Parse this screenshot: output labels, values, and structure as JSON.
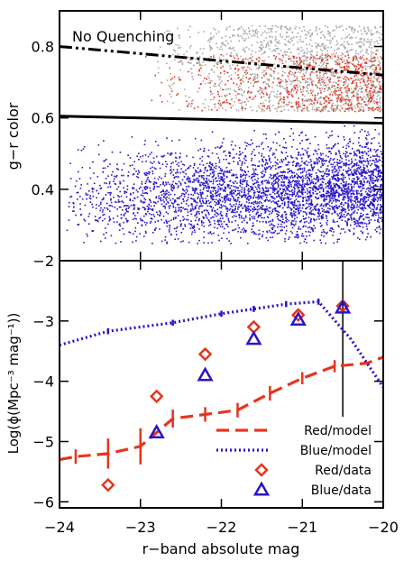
{
  "chart_data": [
    {
      "type": "scatter",
      "annotation": "No Quenching",
      "ylabel": "g−r color",
      "xlim": [
        -24,
        -20
      ],
      "ylim": [
        0.2,
        0.9
      ],
      "yticks": [
        {
          "value": 0.4,
          "label": "0.4"
        },
        {
          "value": 0.6,
          "label": "0.6"
        },
        {
          "value": 0.8,
          "label": "0.8"
        }
      ],
      "lines": [
        {
          "style": "dash-dot-dot",
          "x": [
            -24,
            -20
          ],
          "y": [
            0.8,
            0.72
          ]
        },
        {
          "style": "solid",
          "x": [
            -24,
            -20
          ],
          "y": [
            0.605,
            0.585
          ]
        }
      ],
      "point_groups": [
        {
          "color": "#a8a8a8",
          "x_range": [
            -22.8,
            -20
          ],
          "y_range": [
            0.62,
            0.86
          ],
          "count": 1400
        },
        {
          "color": "#e8341c",
          "x_range": [
            -23.2,
            -20
          ],
          "y_range": [
            0.62,
            0.78
          ],
          "count": 650
        },
        {
          "color": "#2a14c8",
          "x_range": [
            -24,
            -20
          ],
          "y_range": [
            0.25,
            0.6
          ],
          "count": 3800
        }
      ],
      "colors": {
        "gray": "#a8a8a8",
        "red": "#e8341c",
        "blue": "#2a14c8"
      }
    },
    {
      "type": "line",
      "xlabel": "r−band absolute mag",
      "ylabel": "Log(ϕ(Mpc⁻³ mag⁻¹))",
      "xlim": [
        -24,
        -20
      ],
      "ylim": [
        -6.1,
        -2
      ],
      "xticks": [
        {
          "value": -24,
          "label": "−24"
        },
        {
          "value": -23,
          "label": "−23"
        },
        {
          "value": -22,
          "label": "−22"
        },
        {
          "value": -21,
          "label": "−21"
        },
        {
          "value": -20,
          "label": "−20"
        }
      ],
      "yticks": [
        {
          "value": -6,
          "label": "−6"
        },
        {
          "value": -5,
          "label": "−5"
        },
        {
          "value": -4,
          "label": "−4"
        },
        {
          "value": -3,
          "label": "−3"
        },
        {
          "value": -2,
          "label": "−2"
        }
      ],
      "vline_x": -20.5,
      "series": [
        {
          "name": "Red/model",
          "style": "dashed",
          "color": "#e8341c",
          "x": [
            -24,
            -23.8,
            -23.4,
            -23,
            -22.6,
            -22.2,
            -21.8,
            -21.4,
            -21,
            -20.6,
            -20.2,
            -20
          ],
          "y": [
            -5.3,
            -5.25,
            -5.2,
            -5.08,
            -4.62,
            -4.55,
            -4.48,
            -4.2,
            -3.95,
            -3.75,
            -3.7,
            -3.6
          ],
          "err": [
            0,
            0.12,
            0.25,
            0.3,
            0.15,
            0.12,
            0.12,
            0.12,
            0.1,
            0.1,
            0,
            0
          ]
        },
        {
          "name": "Blue/model",
          "style": "dotted",
          "color": "#2a14c8",
          "x": [
            -24,
            -23.4,
            -22.6,
            -22,
            -21.6,
            -21.2,
            -20.8,
            -20.4,
            -20
          ],
          "y": [
            -3.4,
            -3.17,
            -3.03,
            -2.88,
            -2.8,
            -2.72,
            -2.68,
            -3.3,
            -4.1
          ],
          "err": [
            0,
            0.05,
            0.05,
            0.05,
            0.05,
            0.05,
            0.05,
            0,
            0
          ]
        },
        {
          "name": "Red/data",
          "style": "diamond",
          "color": "#e8341c",
          "x": [
            -23.4,
            -22.8,
            -22.2,
            -21.6,
            -21.05,
            -20.5
          ],
          "y": [
            -5.72,
            -4.25,
            -3.55,
            -3.1,
            -2.9,
            -2.75
          ]
        },
        {
          "name": "Blue/data",
          "style": "triangle",
          "color": "#2a14c8",
          "x": [
            -22.8,
            -22.2,
            -21.6,
            -21.05,
            -20.5
          ],
          "y": [
            -4.85,
            -3.9,
            -3.3,
            -2.98,
            -2.78
          ]
        }
      ],
      "legend_position": "bottom-right"
    }
  ]
}
